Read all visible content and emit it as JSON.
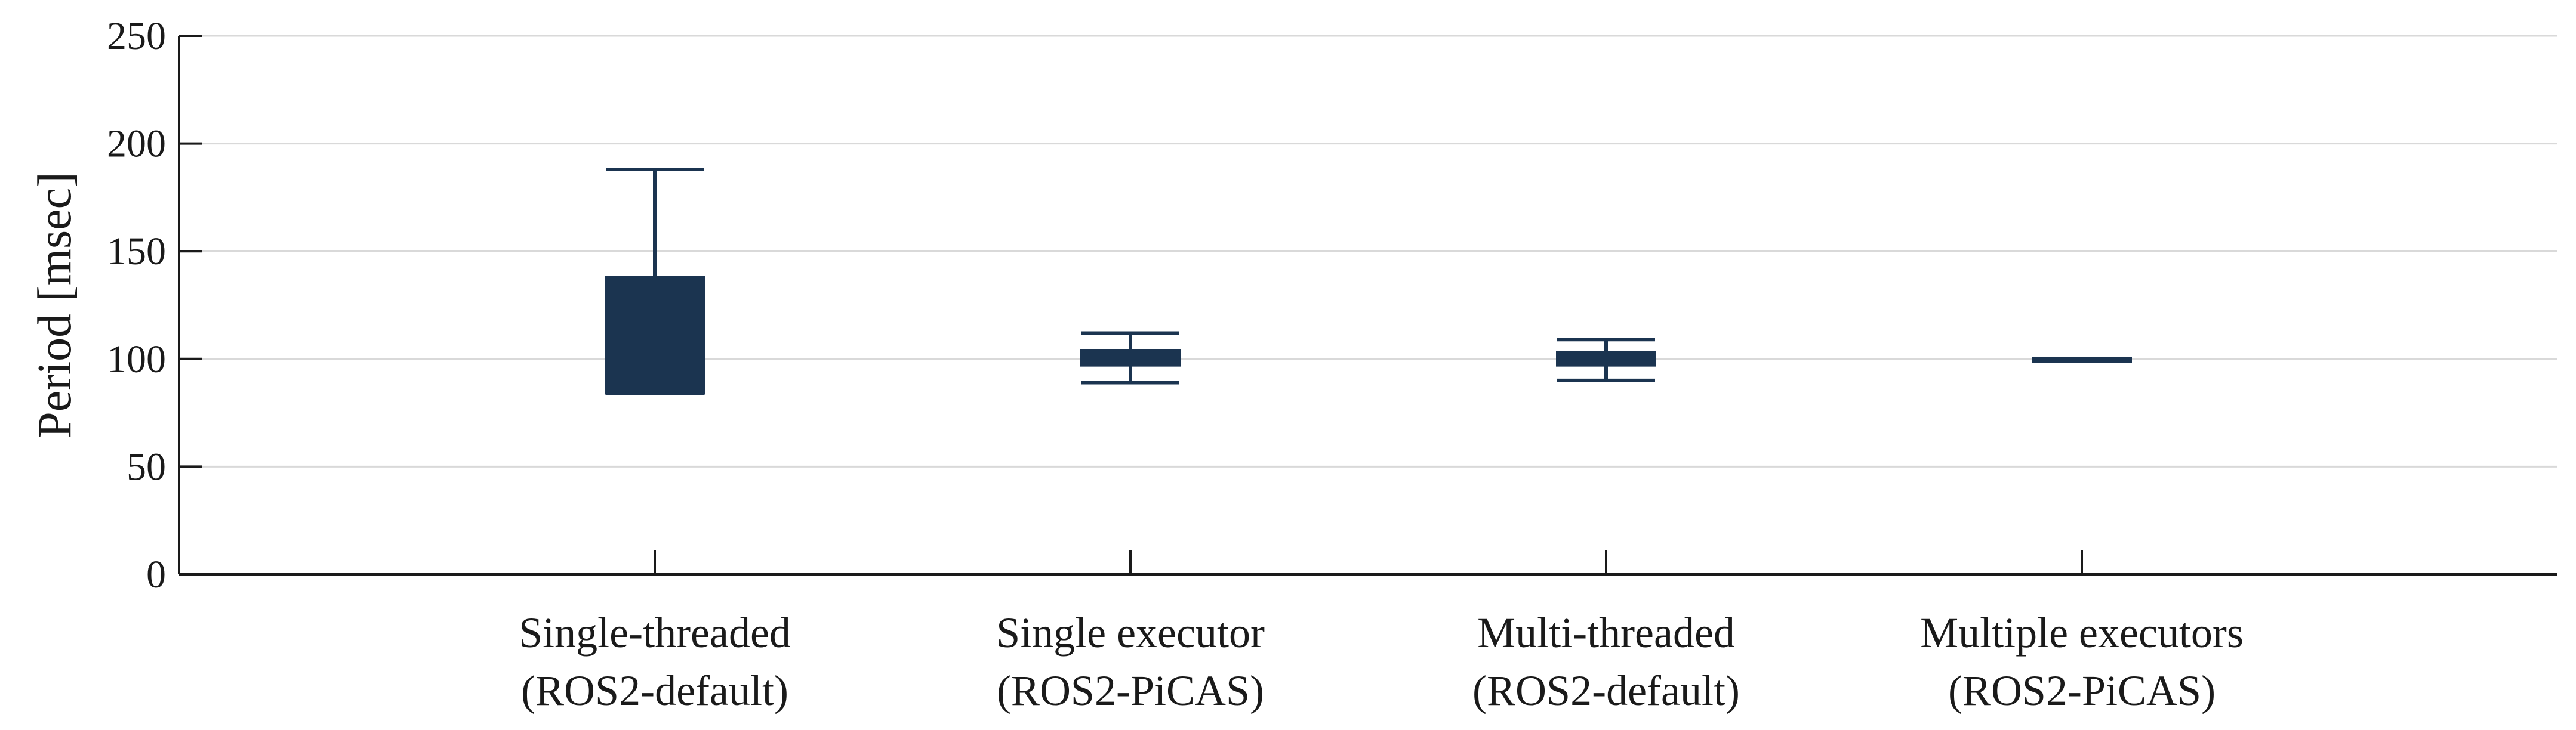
{
  "colors": {
    "box_fill": "#1b3450",
    "box_stroke": "#1b3450",
    "axis": "#1a1a1a",
    "grid": "#d9d9d9"
  },
  "chart_data": {
    "type": "box",
    "title": "",
    "xlabel": "",
    "ylabel": "Period [msec]",
    "ylim": [
      0,
      250
    ],
    "yticks": [
      0,
      50,
      100,
      150,
      200,
      250
    ],
    "grid": "horizontal",
    "categories": [
      [
        "Single-threaded",
        "(ROS2-default)"
      ],
      [
        "Single executor",
        "(ROS2-PiCAS)"
      ],
      [
        "Multi-threaded",
        "(ROS2-default)"
      ],
      [
        "Multiple executors",
        "(ROS2-PiCAS)"
      ]
    ],
    "boxes": [
      {
        "whisker_low": 84,
        "q1": 84,
        "median": 84,
        "q3": 138,
        "whisker_high": 188
      },
      {
        "whisker_low": 89,
        "q1": 97,
        "median": 100,
        "q3": 104,
        "whisker_high": 112
      },
      {
        "whisker_low": 90,
        "q1": 97,
        "median": 100,
        "q3": 103,
        "whisker_high": 109
      },
      {
        "whisker_low": 99.5,
        "q1": 99.5,
        "median": 100,
        "q3": 100.5,
        "whisker_high": 100.5
      }
    ]
  }
}
